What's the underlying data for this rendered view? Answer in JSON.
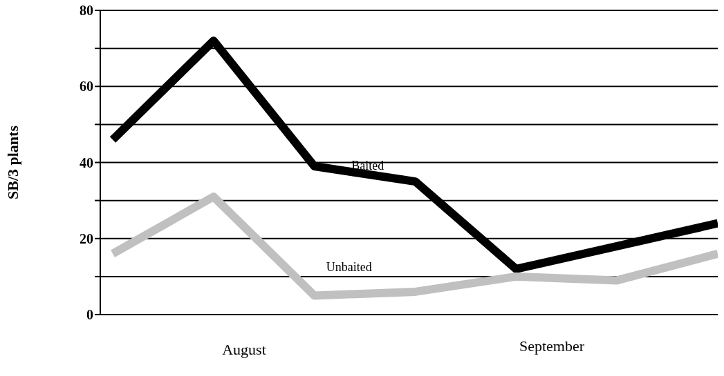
{
  "chart_data": {
    "type": "line",
    "ylabel": "SB/3 plants",
    "categories": [
      null,
      null,
      null,
      null,
      null,
      null,
      null
    ],
    "series": [
      {
        "name": "Baited",
        "color": "#000000",
        "values": [
          46,
          72,
          39,
          35,
          12,
          18,
          24
        ]
      },
      {
        "name": "Unbaited",
        "color": "#c0c0c0",
        "values": [
          16,
          31,
          5,
          6,
          10,
          9,
          16
        ]
      }
    ],
    "ylim": [
      0,
      80
    ],
    "yticks": [
      0,
      {
        "value": 10,
        "label": null
      },
      20,
      {
        "value": 30,
        "label": null
      },
      40,
      {
        "value": 50,
        "label": null
      },
      60,
      {
        "value": 70,
        "label": null
      },
      80
    ],
    "grid": "y",
    "legend": false,
    "marker": "none",
    "line_style": "solid",
    "annotations": [
      "August",
      "September"
    ]
  }
}
